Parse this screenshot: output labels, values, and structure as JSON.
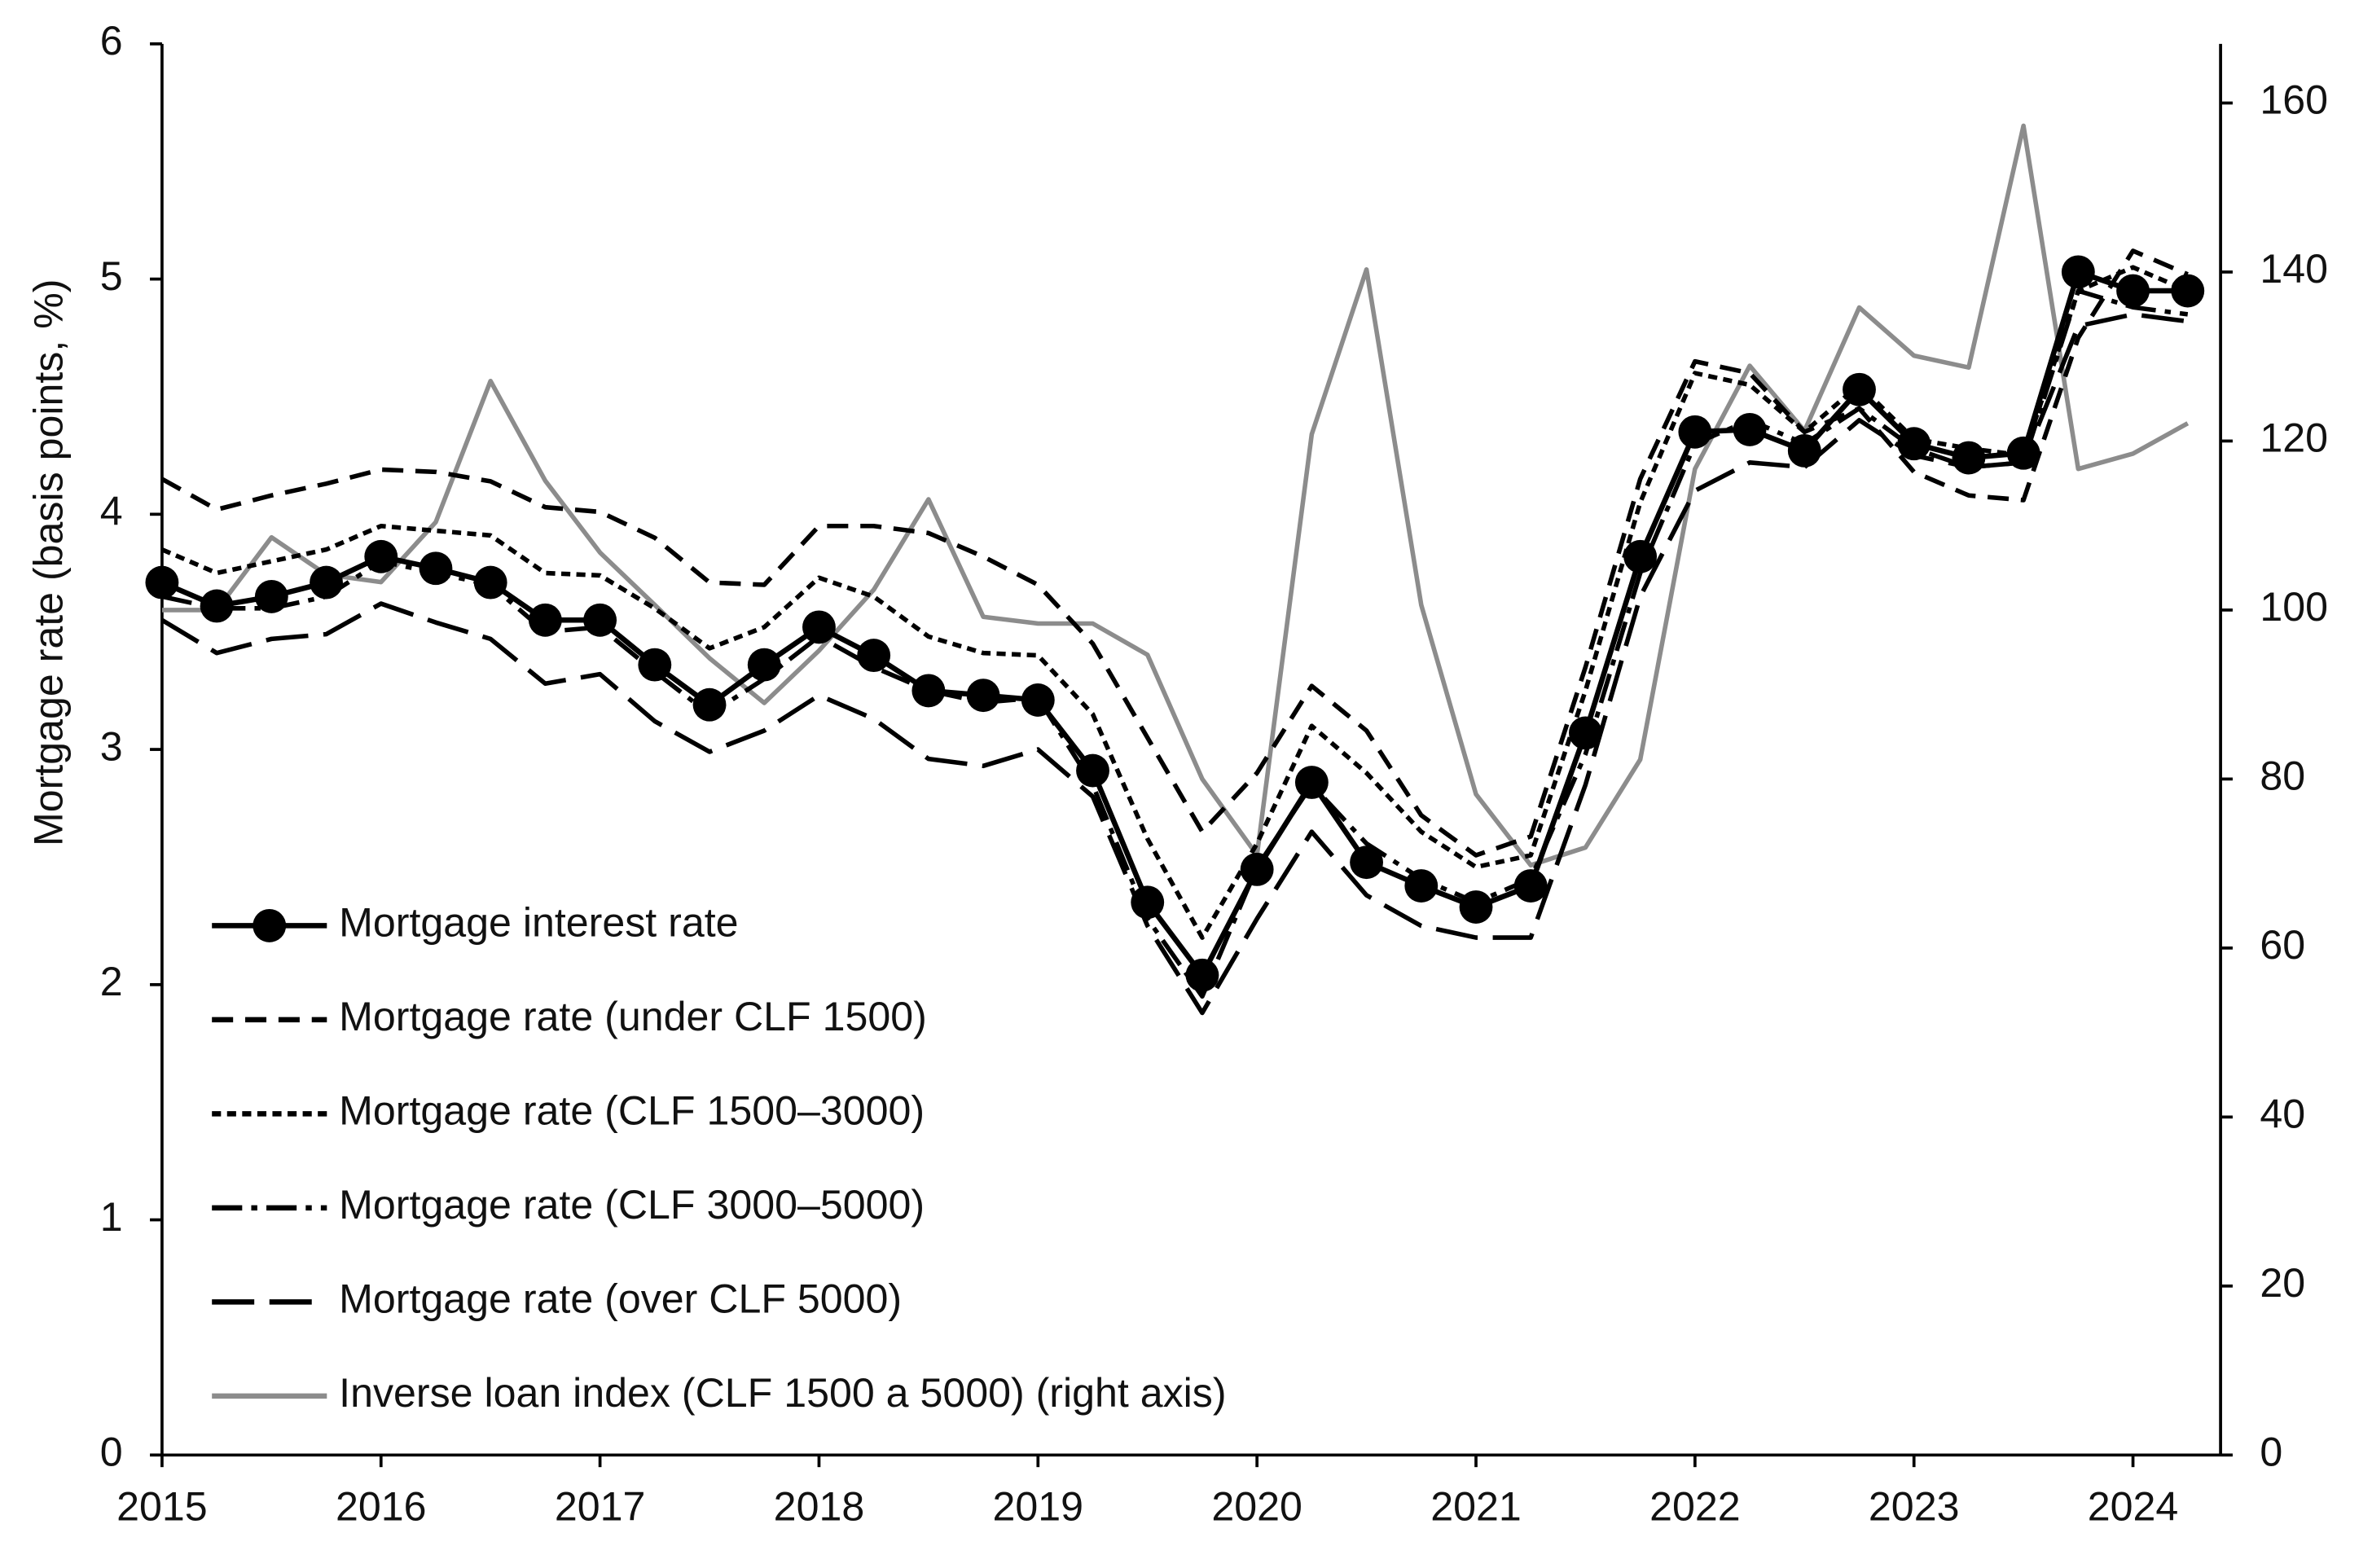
{
  "chart_data": {
    "type": "line",
    "y_label": "Mortgage rate (basis points, %)",
    "x": [
      2015,
      2015.25,
      2015.5,
      2015.75,
      2016,
      2016.25,
      2016.5,
      2016.75,
      2017,
      2017.25,
      2017.5,
      2017.75,
      2018,
      2018.25,
      2018.5,
      2018.75,
      2019,
      2019.25,
      2019.5,
      2019.75,
      2020,
      2020.25,
      2020.5,
      2020.75,
      2021,
      2021.25,
      2021.5,
      2021.75,
      2022,
      2022.25,
      2022.5,
      2022.75,
      2023,
      2023.25,
      2023.5,
      2023.75,
      2024,
      2024.25
    ],
    "xlim": [
      2015,
      2024.4
    ],
    "xticks": [
      2015,
      2016,
      2017,
      2018,
      2019,
      2020,
      2021,
      2022,
      2023,
      2024
    ],
    "ylim": [
      0,
      6
    ],
    "yticks": [
      0,
      1,
      2,
      3,
      4,
      5,
      6
    ],
    "y2lim": [
      0,
      167
    ],
    "y2ticks": [
      0,
      20,
      40,
      60,
      80,
      100,
      120,
      140,
      160
    ],
    "legend": "left",
    "series": [
      {
        "name": "Mortgage interest rate",
        "color": "#000000",
        "style": "solid-marker",
        "values": [
          3.71,
          3.61,
          3.65,
          3.71,
          3.82,
          3.77,
          3.71,
          3.55,
          3.55,
          3.36,
          3.19,
          3.36,
          3.52,
          3.4,
          3.25,
          3.23,
          3.21,
          2.91,
          2.35,
          2.04,
          2.49,
          2.86,
          2.52,
          2.42,
          2.33,
          2.42,
          3.07,
          3.82,
          4.35,
          4.36,
          4.27,
          4.53,
          4.3,
          4.24,
          4.26,
          5.03,
          4.95,
          4.95
        ]
      },
      {
        "name": "Mortgage rate (under CLF 1500)",
        "color": "#000000",
        "style": "dash",
        "values": [
          4.15,
          4.02,
          4.08,
          4.13,
          4.19,
          4.18,
          4.14,
          4.03,
          4.01,
          3.9,
          3.71,
          3.7,
          3.95,
          3.95,
          3.92,
          3.82,
          3.7,
          3.45,
          3.05,
          2.65,
          2.9,
          3.27,
          3.08,
          2.72,
          2.55,
          2.63,
          3.35,
          4.15,
          4.65,
          4.6,
          4.35,
          4.45,
          4.18,
          4.08,
          4.06,
          4.75,
          5.12,
          5.02
        ]
      },
      {
        "name": "Mortgage rate (CLF 1500–3000)",
        "color": "#000000",
        "style": "dot",
        "values": [
          3.85,
          3.75,
          3.8,
          3.85,
          3.95,
          3.93,
          3.91,
          3.75,
          3.74,
          3.6,
          3.43,
          3.52,
          3.73,
          3.65,
          3.48,
          3.41,
          3.4,
          3.15,
          2.62,
          2.2,
          2.6,
          3.1,
          2.9,
          2.65,
          2.5,
          2.55,
          3.25,
          4.05,
          4.6,
          4.55,
          4.35,
          4.55,
          4.32,
          4.28,
          4.25,
          4.95,
          5.05,
          4.95
        ]
      },
      {
        "name": "Mortgage rate (CLF 3000–5000)",
        "color": "#000000",
        "style": "dashdot",
        "values": [
          3.65,
          3.6,
          3.6,
          3.65,
          3.8,
          3.75,
          3.7,
          3.5,
          3.52,
          3.33,
          3.15,
          3.3,
          3.48,
          3.35,
          3.25,
          3.2,
          3.22,
          2.85,
          2.28,
          1.95,
          2.5,
          2.85,
          2.6,
          2.45,
          2.35,
          2.45,
          2.98,
          3.75,
          4.3,
          4.4,
          4.3,
          4.45,
          4.28,
          4.2,
          4.22,
          4.95,
          4.88,
          4.85
        ]
      },
      {
        "name": "Mortgage rate (over CLF 5000)",
        "color": "#000000",
        "style": "longdash",
        "values": [
          3.55,
          3.41,
          3.47,
          3.49,
          3.62,
          3.54,
          3.47,
          3.28,
          3.32,
          3.12,
          2.99,
          3.08,
          3.23,
          3.13,
          2.96,
          2.93,
          3.0,
          2.8,
          2.25,
          1.88,
          2.28,
          2.65,
          2.38,
          2.25,
          2.2,
          2.2,
          2.85,
          3.65,
          4.1,
          4.22,
          4.2,
          4.4,
          4.25,
          4.2,
          4.22,
          4.8,
          4.85,
          4.82
        ]
      },
      {
        "name": "Inverse loan index (CLF 1500 a 5000) (right axis)",
        "color": "#8c8c8c",
        "style": "solid",
        "axis": "y2",
        "values": [
          100,
          100,
          108.6,
          104.2,
          103.3,
          110.4,
          127.1,
          115.3,
          106.8,
          100.6,
          94.3,
          89,
          95.2,
          102.4,
          113.1,
          99.2,
          98.4,
          98.4,
          94.7,
          80,
          71,
          120.8,
          140.3,
          100.6,
          78.2,
          69.8,
          71.9,
          82.3,
          116.7,
          128.9,
          121.2,
          135.8,
          130.1,
          128.7,
          157.3,
          116.7,
          118.5,
          122.1
        ]
      }
    ]
  }
}
